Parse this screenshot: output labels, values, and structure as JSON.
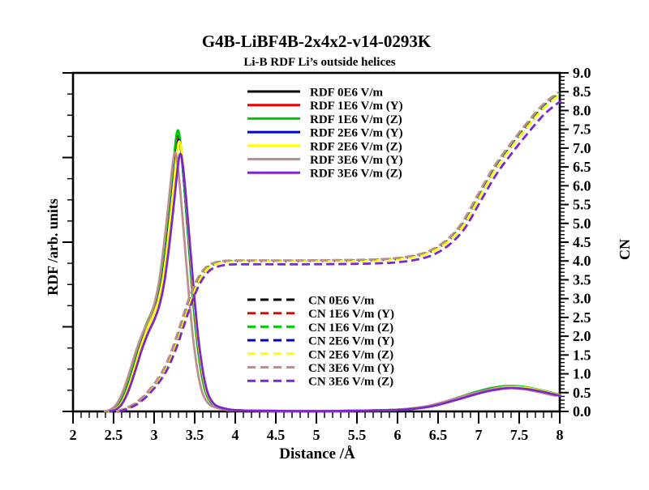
{
  "title": "G4B-LiBF4B-2x4x2-v14-0293K",
  "subtitle": "Li-B RDF Li’s outside helices",
  "chart_data": {
    "type": "line",
    "xlabel": "Distance /Å",
    "ylabel_left": "RDF /arb. units",
    "ylabel_right": "CN",
    "xlim": [
      2,
      8
    ],
    "x_major_step": 0.5,
    "x_minor_step": 0.1,
    "ylim_right": [
      0,
      9
    ],
    "y_right_major_step": 0.5,
    "y_right_minor_step": 0.1,
    "left_axis_numeric_labels": false,
    "grid": false,
    "legend_position": {
      "rdf_block": "upper-center",
      "cn_block": "lower-center"
    },
    "colors": {
      "field_0": "#000000",
      "field_1y": "#ee0000",
      "field_1z": "#00c800",
      "field_2y": "#0000dd",
      "field_2z": "#ffff00",
      "field_3y": "#bc8f8f",
      "field_3z": "#7d26cd"
    },
    "curves": {
      "rdf": [
        [
          2.42,
          0.0
        ],
        [
          2.5,
          0.05
        ],
        [
          2.58,
          0.22
        ],
        [
          2.66,
          0.6
        ],
        [
          2.74,
          1.15
        ],
        [
          2.82,
          1.75
        ],
        [
          2.9,
          2.25
        ],
        [
          2.98,
          2.65
        ],
        [
          3.04,
          3.05
        ],
        [
          3.1,
          3.7
        ],
        [
          3.16,
          4.75
        ],
        [
          3.22,
          6.0
        ],
        [
          3.27,
          7.1
        ],
        [
          3.3,
          7.4
        ],
        [
          3.33,
          7.05
        ],
        [
          3.37,
          6.1
        ],
        [
          3.42,
          4.7
        ],
        [
          3.47,
          3.3
        ],
        [
          3.52,
          2.1
        ],
        [
          3.58,
          1.1
        ],
        [
          3.64,
          0.5
        ],
        [
          3.72,
          0.2
        ],
        [
          3.82,
          0.1
        ],
        [
          3.95,
          0.04
        ],
        [
          4.2,
          0.02
        ],
        [
          5.0,
          0.01
        ],
        [
          5.8,
          0.03
        ],
        [
          6.1,
          0.06
        ],
        [
          6.4,
          0.15
        ],
        [
          6.7,
          0.33
        ],
        [
          6.95,
          0.5
        ],
        [
          7.15,
          0.61
        ],
        [
          7.35,
          0.67
        ],
        [
          7.55,
          0.65
        ],
        [
          7.75,
          0.57
        ],
        [
          8.0,
          0.44
        ]
      ],
      "cn": [
        [
          2.55,
          0.0
        ],
        [
          2.65,
          0.07
        ],
        [
          2.75,
          0.17
        ],
        [
          2.85,
          0.33
        ],
        [
          2.95,
          0.55
        ],
        [
          3.05,
          0.82
        ],
        [
          3.15,
          1.18
        ],
        [
          3.25,
          1.7
        ],
        [
          3.35,
          2.35
        ],
        [
          3.45,
          3.0
        ],
        [
          3.55,
          3.5
        ],
        [
          3.65,
          3.8
        ],
        [
          3.75,
          3.93
        ],
        [
          3.9,
          3.99
        ],
        [
          4.2,
          4.0
        ],
        [
          4.8,
          4.0
        ],
        [
          5.4,
          4.01
        ],
        [
          5.8,
          4.03
        ],
        [
          6.0,
          4.06
        ],
        [
          6.2,
          4.12
        ],
        [
          6.4,
          4.24
        ],
        [
          6.6,
          4.5
        ],
        [
          6.8,
          4.95
        ],
        [
          7.0,
          5.7
        ],
        [
          7.2,
          6.45
        ],
        [
          7.4,
          7.05
        ],
        [
          7.6,
          7.6
        ],
        [
          7.8,
          8.1
        ],
        [
          8.0,
          8.45
        ]
      ]
    },
    "curve_notes": "RDF first peak at ~3.3 Å; CN plateau = 4.0 between ~3.8 and ~6.2 Å; CN rises to ~8.5 at 8 Å; broad second RDF bump peaks ~0.67 at ~7.35 Å. All seven field series overlap within line width; dx/scale give the small visible offsets.",
    "series": [
      {
        "label": "RDF 0E6 V/m",
        "color": "#000000",
        "dash": false,
        "curve": "rdf",
        "dx": 0.0,
        "scale": 0.99
      },
      {
        "label": "RDF 1E6 V/m (Y)",
        "color": "#ee0000",
        "dash": false,
        "curve": "rdf",
        "dx": 0.005,
        "scale": 0.985
      },
      {
        "label": "RDF 1E6 V/m (Z)",
        "color": "#00c800",
        "dash": false,
        "curve": "rdf",
        "dx": -0.005,
        "scale": 1.01
      },
      {
        "label": "RDF 2E6 V/m (Y)",
        "color": "#0000dd",
        "dash": false,
        "curve": "rdf",
        "dx": 0.008,
        "scale": 0.975
      },
      {
        "label": "RDF 2E6 V/m (Z)",
        "color": "#ffff00",
        "dash": false,
        "curve": "rdf",
        "dx": 0.012,
        "scale": 0.97
      },
      {
        "label": "RDF 3E6 V/m (Y)",
        "color": "#bc8f8f",
        "dash": false,
        "curve": "rdf",
        "dx": -0.04,
        "scale": 0.93
      },
      {
        "label": "RDF 3E6 V/m (Z)",
        "color": "#7d26cd",
        "dash": false,
        "curve": "rdf",
        "dx": 0.025,
        "scale": 0.925
      },
      {
        "label": "CN 0E6 V/m",
        "color": "#000000",
        "dash": true,
        "curve": "cn",
        "dx": 0.0,
        "scale": 1.0
      },
      {
        "label": "CN 1E6 V/m (Y)",
        "color": "#ee0000",
        "dash": true,
        "curve": "cn",
        "dx": 0.005,
        "scale": 1.0
      },
      {
        "label": "CN 1E6 V/m (Z)",
        "color": "#00c800",
        "dash": true,
        "curve": "cn",
        "dx": -0.005,
        "scale": 1.002
      },
      {
        "label": "CN 2E6 V/m (Y)",
        "color": "#0000dd",
        "dash": true,
        "curve": "cn",
        "dx": 0.006,
        "scale": 0.999
      },
      {
        "label": "CN 2E6 V/m (Z)",
        "color": "#ffff00",
        "dash": true,
        "curve": "cn",
        "dx": 0.01,
        "scale": 0.998
      },
      {
        "label": "CN 3E6 V/m (Y)",
        "color": "#bc8f8f",
        "dash": true,
        "curve": "cn",
        "dx": -0.02,
        "scale": 1.004
      },
      {
        "label": "CN 3E6 V/m (Z)",
        "color": "#7d26cd",
        "dash": true,
        "curve": "cn",
        "dx": 0.02,
        "scale": 0.978
      }
    ]
  }
}
